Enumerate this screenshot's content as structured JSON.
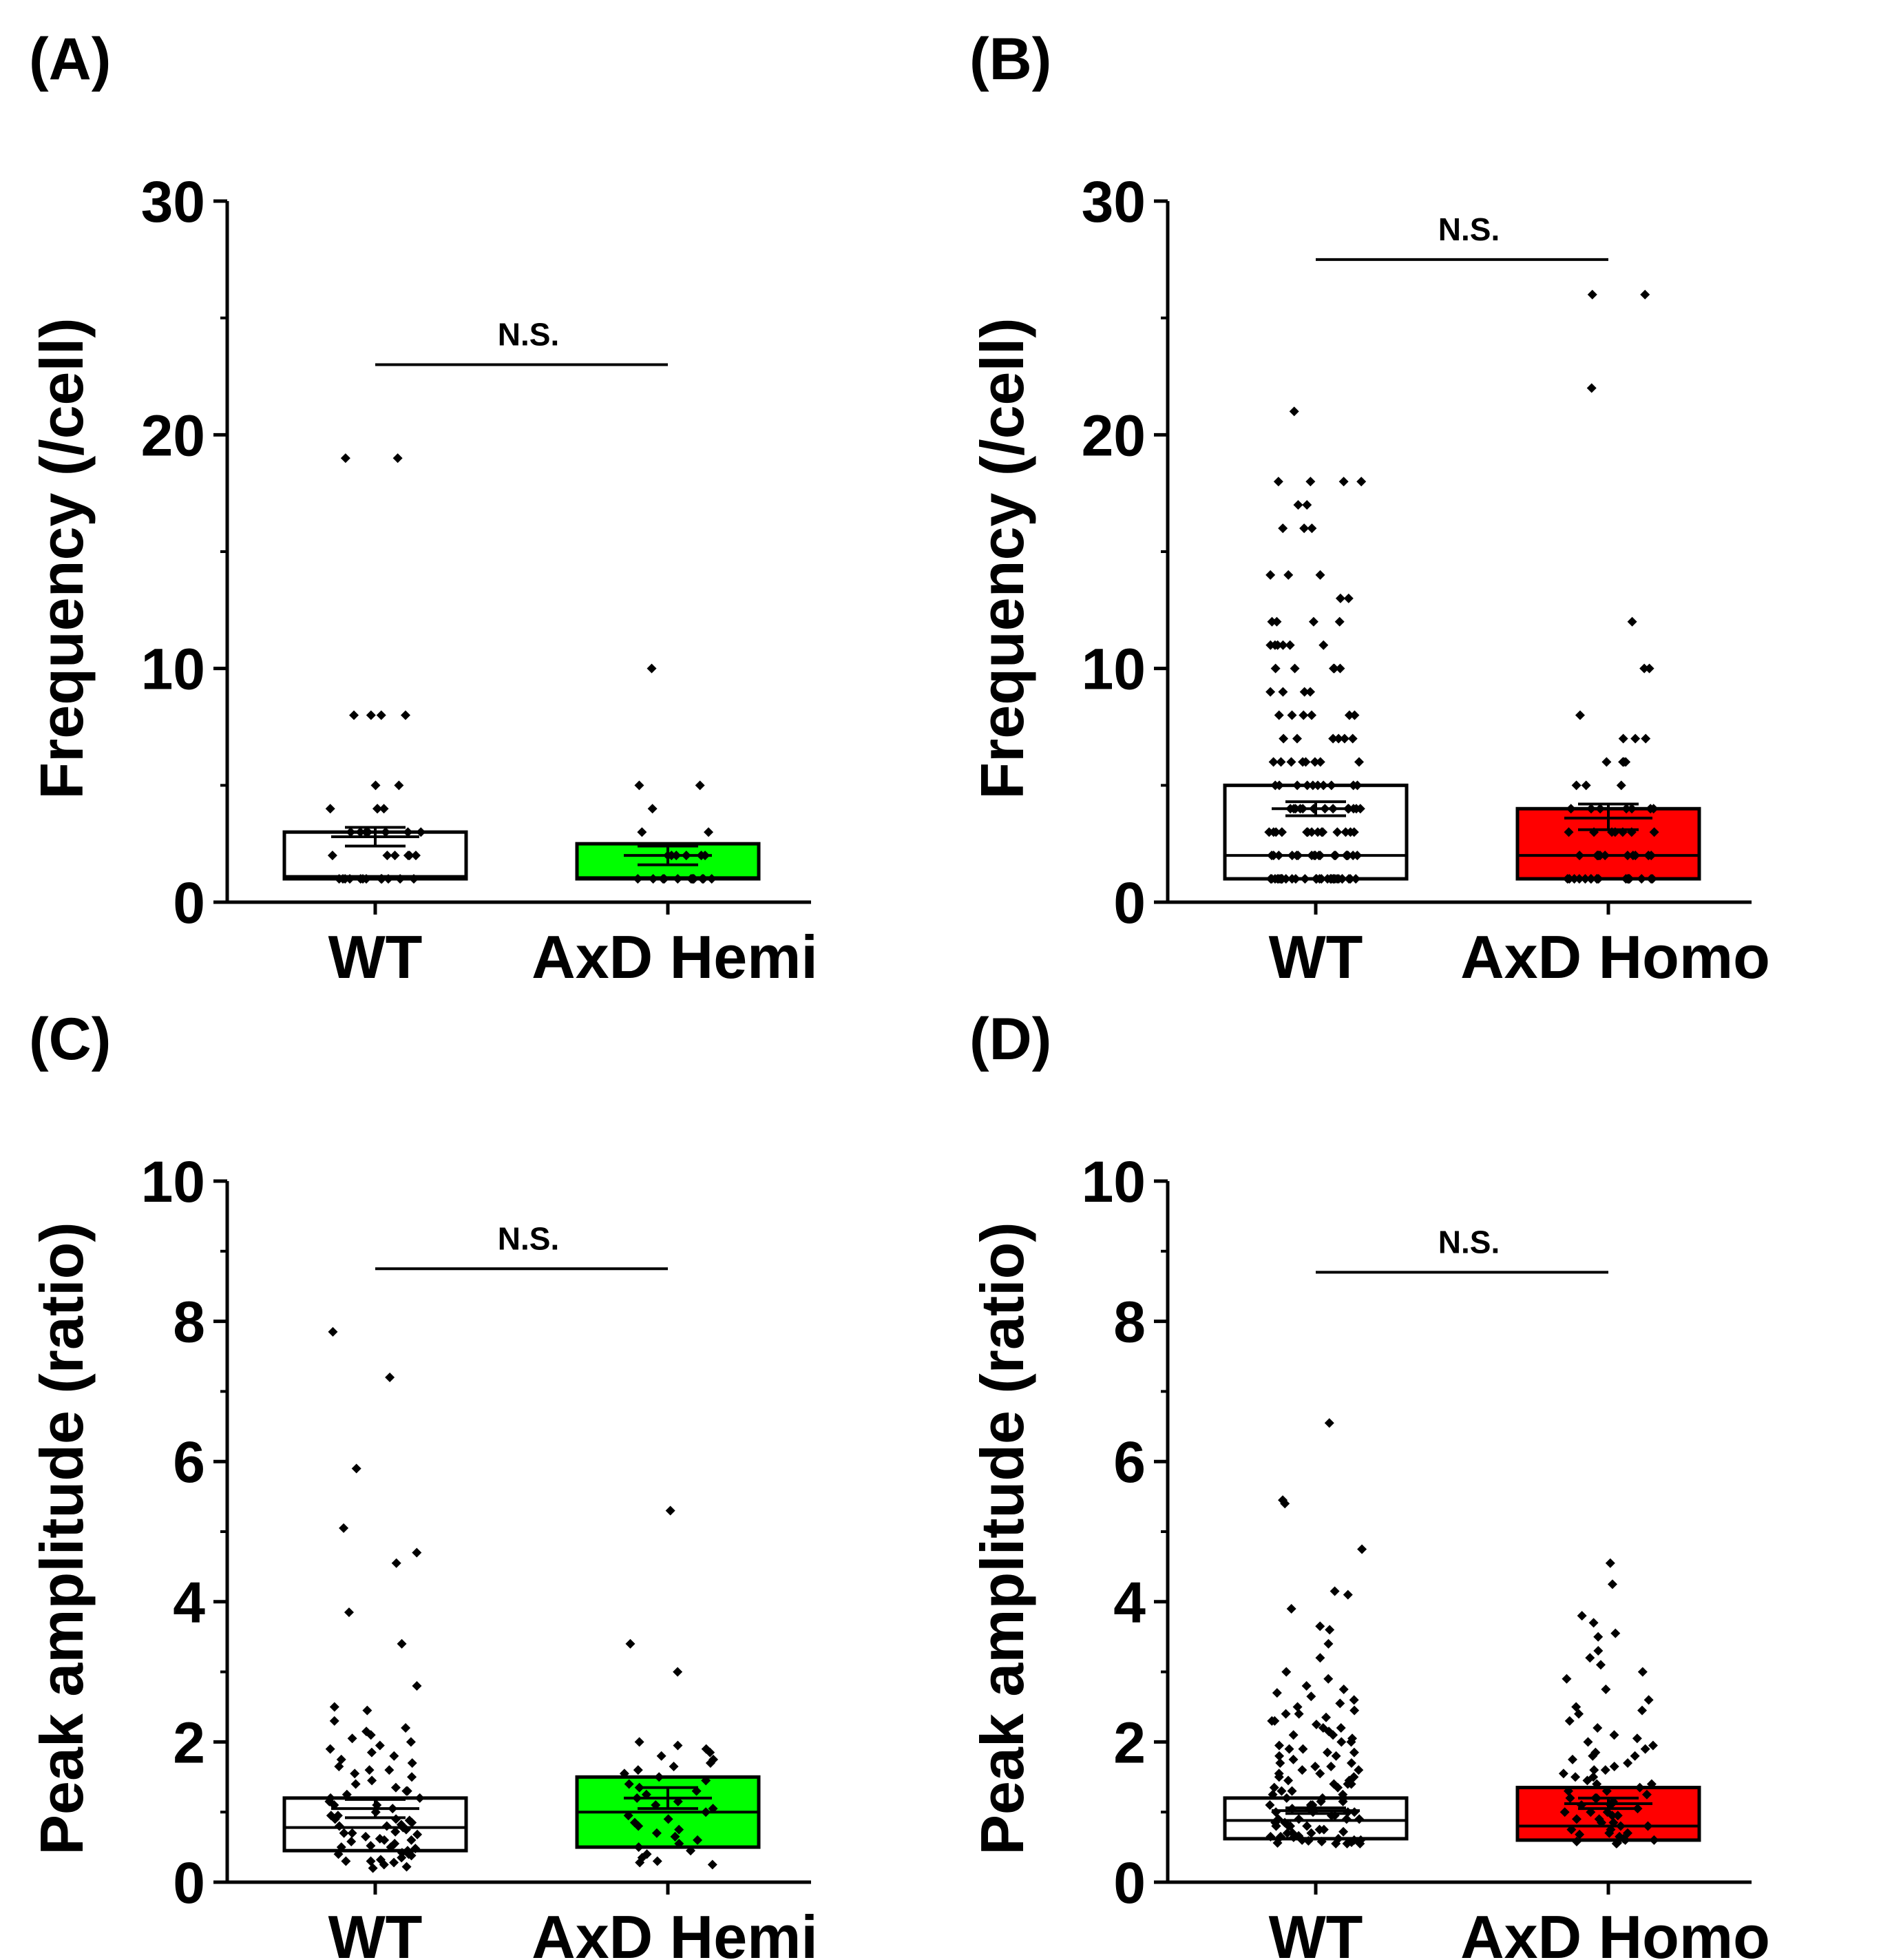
{
  "colors": {
    "wt": "#ffffff",
    "hemi": "#00ff00",
    "homo": "#ff0000",
    "axis": "#000000"
  },
  "chart_data": [
    {
      "id": "A",
      "panel_label": "(A)",
      "type": "box-scatter",
      "ylabel": "Frequency (/cell)",
      "ylim": [
        0,
        30
      ],
      "yticks": [
        "0",
        "10",
        "20",
        "30"
      ],
      "ytick_values": [
        0,
        10,
        20,
        30
      ],
      "minor_ticks": [
        5,
        15,
        25
      ],
      "categories": [
        "WT",
        "AxD Hemi"
      ],
      "significance": {
        "text": "N.S.",
        "y": 23
      },
      "series": [
        {
          "name": "WT",
          "color": "#ffffff",
          "q1": 1,
          "median": 1.1,
          "q3": 3,
          "mean": 2.8,
          "sem_low": 2.4,
          "sem_high": 3.2,
          "points": [
            19,
            19,
            8,
            8,
            8,
            8,
            5,
            5,
            4,
            4,
            4,
            4,
            3,
            3,
            3,
            3,
            3,
            3,
            3,
            2,
            2,
            2,
            2,
            2,
            2,
            1,
            1,
            1,
            1,
            1,
            1,
            1,
            1,
            1,
            1,
            1,
            1
          ]
        },
        {
          "name": "AxD Hemi",
          "color": "#00ff00",
          "q1": 1,
          "median": 1.05,
          "q3": 2.5,
          "mean": 2.0,
          "sem_low": 1.6,
          "sem_high": 2.4,
          "points": [
            10,
            5,
            5,
            4,
            3,
            3,
            2,
            2,
            2,
            2,
            2,
            2,
            1,
            1,
            1,
            1,
            1,
            1,
            1,
            1,
            1,
            1,
            1,
            1
          ]
        }
      ]
    },
    {
      "id": "B",
      "panel_label": "(B)",
      "type": "box-scatter",
      "ylabel": "Frequency (/cell)",
      "ylim": [
        0,
        30
      ],
      "yticks": [
        "0",
        "10",
        "20",
        "30"
      ],
      "ytick_values": [
        0,
        10,
        20,
        30
      ],
      "minor_ticks": [
        5,
        15,
        25
      ],
      "categories": [
        "WT",
        "AxD Homo"
      ],
      "significance": {
        "text": "N.S.",
        "y": 27.5
      },
      "series": [
        {
          "name": "WT",
          "color": "#ffffff",
          "q1": 1,
          "median": 2,
          "q3": 5,
          "mean": 4.0,
          "sem_low": 3.7,
          "sem_high": 4.3,
          "points": [
            21,
            18,
            18,
            18,
            18,
            17,
            17,
            16,
            16,
            16,
            14,
            14,
            14,
            13,
            13,
            12,
            12,
            12,
            12,
            11,
            11,
            11,
            11,
            11,
            11,
            10,
            10,
            10,
            10,
            10,
            9,
            9,
            9,
            9,
            8,
            8,
            8,
            8,
            8,
            8,
            7,
            7,
            7,
            7,
            7,
            7,
            6,
            6,
            6,
            6,
            6,
            6,
            6,
            6,
            5,
            5,
            5,
            5,
            5,
            5,
            5,
            5,
            5,
            5,
            4,
            4,
            4,
            4,
            4,
            4,
            4,
            4,
            4,
            4,
            4,
            4,
            4,
            3,
            3,
            3,
            3,
            3,
            3,
            3,
            3,
            3,
            3,
            3,
            3,
            3,
            3,
            3,
            2,
            2,
            2,
            2,
            2,
            2,
            2,
            2,
            2,
            2,
            2,
            2,
            2,
            2,
            2,
            2,
            2,
            2,
            1,
            1,
            1,
            1,
            1,
            1,
            1,
            1,
            1,
            1,
            1,
            1,
            1,
            1,
            1,
            1,
            1,
            1,
            1,
            1,
            1,
            1,
            1,
            1,
            1,
            1,
            1,
            1,
            1,
            1
          ]
        },
        {
          "name": "AxD Homo",
          "color": "#ff0000",
          "q1": 1,
          "median": 2,
          "q3": 4,
          "mean": 3.6,
          "sem_low": 3.1,
          "sem_high": 4.2,
          "points": [
            26,
            26,
            22,
            12,
            10,
            10,
            8,
            7,
            7,
            7,
            6,
            6,
            6,
            6,
            5,
            5,
            5,
            4,
            4,
            4,
            4,
            4,
            4,
            4,
            3,
            3,
            3,
            3,
            3,
            3,
            3,
            2,
            2,
            2,
            2,
            2,
            2,
            2,
            2,
            2,
            2,
            2,
            1,
            1,
            1,
            1,
            1,
            1,
            1,
            1,
            1,
            1,
            1,
            1,
            1,
            1,
            1,
            1,
            1,
            1
          ]
        }
      ]
    },
    {
      "id": "C",
      "panel_label": "(C)",
      "type": "box-scatter",
      "ylabel": "Peak amplitude (ratio)",
      "ylim": [
        0,
        10
      ],
      "yticks": [
        "0",
        "2",
        "4",
        "6",
        "8",
        "10"
      ],
      "ytick_values": [
        0,
        2,
        4,
        6,
        8,
        10
      ],
      "minor_ticks": [
        1,
        3,
        5,
        7,
        9
      ],
      "categories": [
        "WT",
        "AxD Hemi"
      ],
      "significance": {
        "text": "N.S.",
        "y": 8.75
      },
      "series": [
        {
          "name": "WT",
          "color": "#ffffff",
          "q1": 0.45,
          "median": 0.78,
          "q3": 1.2,
          "mean": 1.05,
          "sem_low": 0.92,
          "sem_high": 1.18,
          "points": [
            7.85,
            7.2,
            5.9,
            5.05,
            4.7,
            4.55,
            3.85,
            3.4,
            2.8,
            2.5,
            2.45,
            2.3,
            2.2,
            2.15,
            2.1,
            2.05,
            2.0,
            1.95,
            1.9,
            1.85,
            1.8,
            1.75,
            1.7,
            1.65,
            1.6,
            1.55,
            1.5,
            1.45,
            1.4,
            1.35,
            1.3,
            1.25,
            1.2,
            1.15,
            1.1,
            1.05,
            1.0,
            0.95,
            0.9,
            0.88,
            0.85,
            0.82,
            0.8,
            0.78,
            0.75,
            0.72,
            0.7,
            0.68,
            0.65,
            0.62,
            0.6,
            0.58,
            0.55,
            0.52,
            0.5,
            0.48,
            0.45,
            0.42,
            0.4,
            0.38,
            0.35,
            0.32,
            0.3,
            0.28,
            0.25,
            0.22,
            0.2,
            1.1,
            0.9,
            0.7,
            0.5,
            0.3,
            1.3,
            0.95,
            0.6,
            0.4,
            1.6,
            1.2,
            0.8
          ]
        },
        {
          "name": "AxD Hemi",
          "color": "#00ff00",
          "q1": 0.5,
          "median": 1.0,
          "q3": 1.5,
          "mean": 1.2,
          "sem_low": 1.05,
          "sem_high": 1.35,
          "points": [
            5.3,
            3.4,
            3.0,
            2.0,
            1.95,
            1.9,
            1.85,
            1.8,
            1.75,
            1.7,
            1.65,
            1.6,
            1.55,
            1.5,
            1.45,
            1.4,
            1.35,
            1.3,
            1.25,
            1.2,
            1.15,
            1.1,
            1.05,
            1.0,
            0.95,
            0.9,
            0.85,
            0.8,
            0.75,
            0.7,
            0.65,
            0.6,
            0.55,
            0.5,
            0.45,
            0.4,
            0.35,
            0.3,
            0.28,
            0.25
          ]
        }
      ]
    },
    {
      "id": "D",
      "panel_label": "(D)",
      "type": "box-scatter",
      "ylabel": "Peak amplitude (ratio)",
      "ylim": [
        0,
        10
      ],
      "yticks": [
        "0",
        "2",
        "4",
        "6",
        "8",
        "10"
      ],
      "ytick_values": [
        0,
        2,
        4,
        6,
        8,
        10
      ],
      "minor_ticks": [
        1,
        3,
        5,
        7,
        9
      ],
      "categories": [
        "WT",
        "AxD Homo"
      ],
      "significance": {
        "text": "N.S.",
        "y": 8.7
      },
      "series": [
        {
          "name": "WT",
          "color": "#ffffff",
          "q1": 0.62,
          "median": 0.88,
          "q3": 1.2,
          "mean": 1.02,
          "sem_low": 0.98,
          "sem_high": 1.06,
          "points": [
            6.55,
            5.45,
            5.4,
            4.75,
            4.15,
            4.1,
            3.9,
            3.65,
            3.6,
            3.4,
            3.2,
            3.0,
            2.9,
            2.8,
            2.75,
            2.7,
            2.65,
            2.6,
            2.55,
            2.5,
            2.45,
            2.4,
            2.35,
            2.3,
            2.25,
            2.2,
            2.15,
            2.1,
            2.05,
            2.0,
            1.95,
            1.9,
            1.85,
            1.8,
            1.75,
            1.7,
            1.65,
            1.6,
            1.55,
            1.5,
            1.45,
            1.4,
            1.35,
            1.3,
            1.25,
            1.2,
            1.15,
            1.1,
            1.05,
            1.0,
            0.95,
            0.9,
            0.85,
            0.8,
            0.75,
            0.7,
            0.65,
            0.6,
            0.55,
            2.4,
            2.2,
            2.0,
            1.8,
            1.6,
            1.4,
            1.2,
            1.0,
            0.8,
            0.6,
            2.3,
            2.1,
            1.9,
            1.7,
            1.5,
            1.3,
            1.1,
            0.9,
            0.7,
            0.55,
            1.85,
            1.65,
            1.45,
            1.25,
            1.05,
            0.85,
            0.65,
            0.58,
            1.55,
            1.35,
            1.15,
            0.95,
            0.75,
            0.6,
            1.4,
            1.2,
            1.0,
            0.8,
            0.62,
            1.1,
            0.9,
            0.7,
            0.56,
            1.0,
            0.8,
            0.66,
            0.57,
            0.9,
            0.72,
            0.59,
            0.8,
            0.64,
            0.55
          ]
        },
        {
          "name": "AxD Homo",
          "color": "#ff0000",
          "q1": 0.6,
          "median": 0.8,
          "q3": 1.35,
          "mean": 1.12,
          "sem_low": 1.05,
          "sem_high": 1.2,
          "points": [
            4.55,
            4.25,
            3.8,
            3.7,
            3.55,
            3.5,
            3.3,
            3.2,
            3.1,
            3.0,
            2.9,
            2.75,
            2.6,
            2.5,
            2.45,
            2.4,
            2.3,
            2.2,
            2.1,
            2.05,
            2.0,
            1.95,
            1.9,
            1.85,
            1.8,
            1.75,
            1.7,
            1.65,
            1.6,
            1.55,
            1.5,
            1.45,
            1.4,
            1.35,
            1.3,
            1.25,
            1.2,
            1.15,
            1.1,
            1.05,
            1.0,
            0.95,
            0.9,
            0.85,
            0.8,
            0.75,
            0.7,
            0.65,
            0.6,
            0.55,
            1.8,
            1.6,
            1.4,
            1.2,
            1.0,
            0.8,
            0.62,
            1.5,
            1.3,
            1.1,
            0.9,
            0.7,
            0.58,
            1.2,
            1.0,
            0.85,
            0.68,
            0.56,
            0.95,
            0.75,
            0.6
          ]
        }
      ]
    }
  ]
}
